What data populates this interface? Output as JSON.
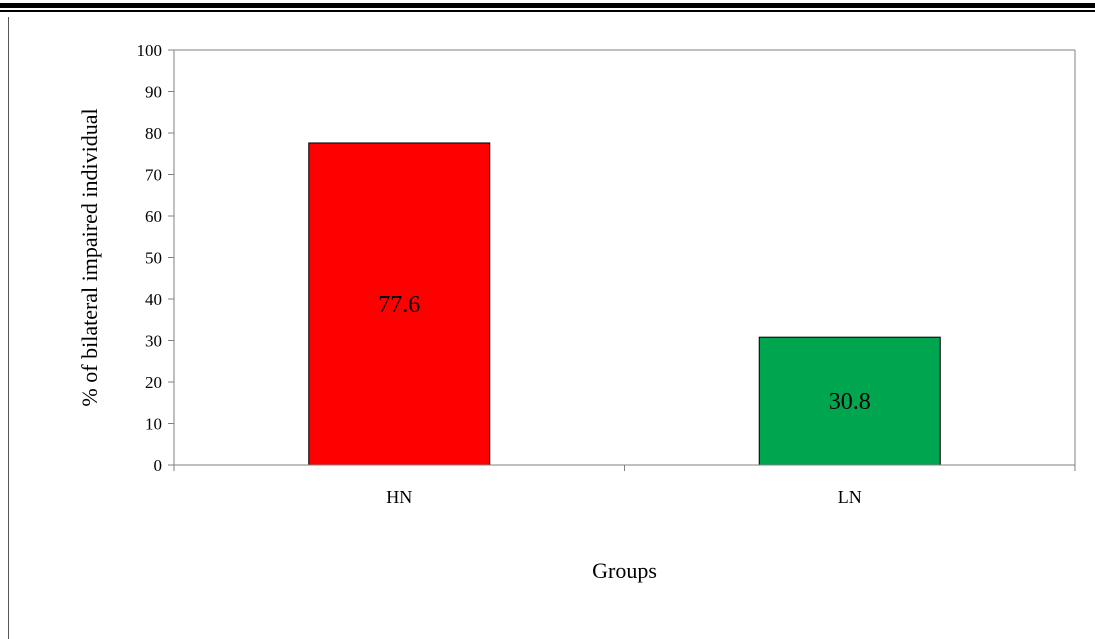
{
  "chart_data": {
    "type": "bar",
    "categories": [
      "HN",
      "LN"
    ],
    "values": [
      77.6,
      30.8
    ],
    "data_labels": [
      "77.6",
      "30.8"
    ],
    "colors": [
      "#ff0000",
      "#00a550"
    ],
    "title": "",
    "xlabel": "Groups",
    "ylabel": "% of bilateral impaired individual",
    "ylim": [
      0,
      100
    ],
    "yticks": [
      0,
      10,
      20,
      30,
      40,
      50,
      60,
      70,
      80,
      90,
      100
    ],
    "grid": false,
    "legend": "none"
  }
}
